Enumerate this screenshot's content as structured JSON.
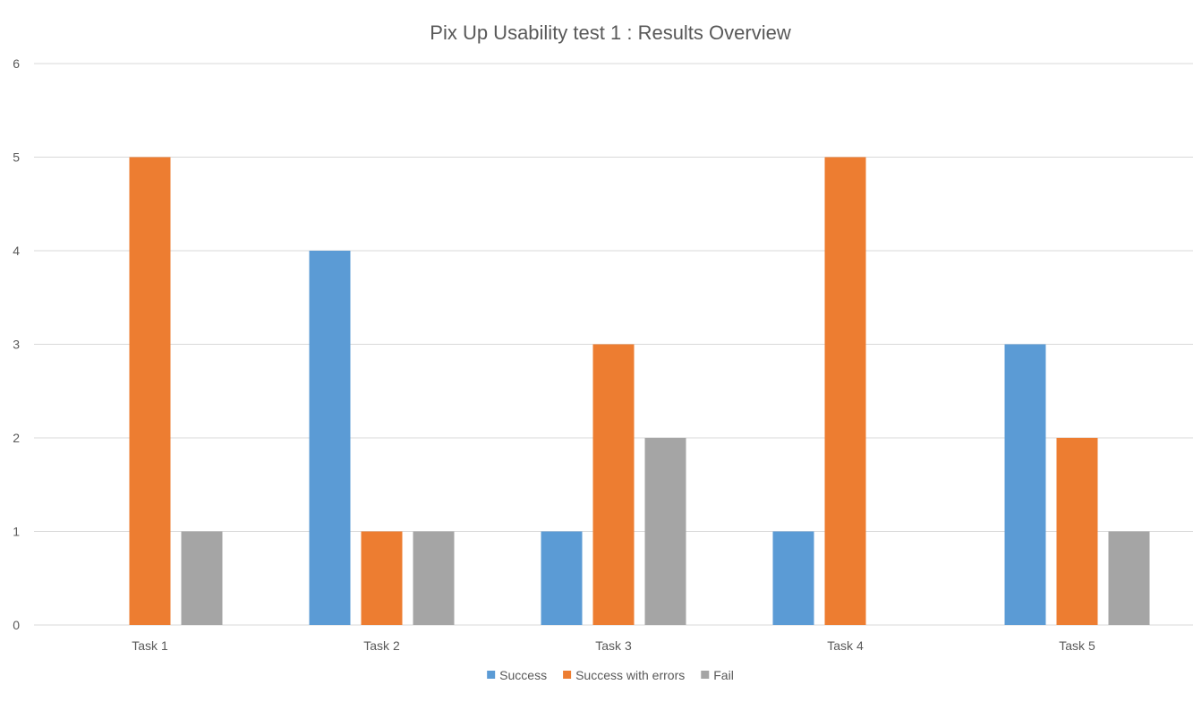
{
  "chart_data": {
    "type": "bar",
    "title": "Pix Up Usability test 1 : Results Overview",
    "xlabel": "",
    "ylabel": "",
    "categories": [
      "Task 1",
      "Task 2",
      "Task 3",
      "Task 4",
      "Task 5"
    ],
    "series": [
      {
        "name": "Success",
        "values": [
          0,
          4,
          1,
          1,
          3
        ],
        "color": "#5b9bd5"
      },
      {
        "name": "Success with errors",
        "values": [
          5,
          1,
          3,
          5,
          2
        ],
        "color": "#ed7d31"
      },
      {
        "name": "Fail",
        "values": [
          1,
          1,
          2,
          0,
          1
        ],
        "color": "#a5a5a5"
      }
    ],
    "ylim": [
      0,
      6
    ],
    "yticks": [
      "0",
      "1",
      "2",
      "3",
      "4",
      "5",
      "6"
    ],
    "grid": true,
    "legend_position": "bottom"
  }
}
